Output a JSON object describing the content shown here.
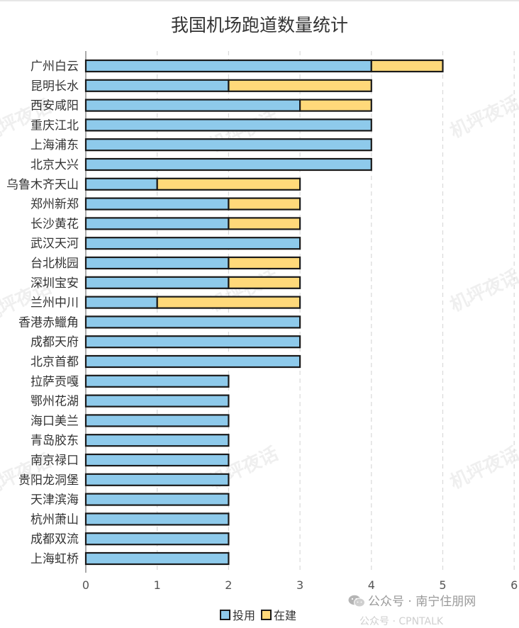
{
  "chart_data": {
    "type": "bar",
    "orientation": "horizontal",
    "stacked": true,
    "title": "我国机场跑道数量统计",
    "categories": [
      "广州白云",
      "昆明长水",
      "西安咸阳",
      "重庆江北",
      "上海浦东",
      "北京大兴",
      "乌鲁木齐天山",
      "郑州新郑",
      "长沙黄花",
      "武汉天河",
      "台北桃园",
      "深圳宝安",
      "兰州中川",
      "香港赤鱲角",
      "成都天府",
      "北京首都",
      "拉萨贡嘎",
      "鄂州花湖",
      "海口美兰",
      "青岛胶东",
      "南京禄口",
      "贵阳龙洞堡",
      "天津滨海",
      "杭州萧山",
      "成都双流",
      "上海虹桥"
    ],
    "series": [
      {
        "name": "投用",
        "color": "#8ecaeb",
        "values": [
          4,
          2,
          3,
          4,
          4,
          4,
          1,
          2,
          2,
          3,
          2,
          2,
          1,
          3,
          3,
          3,
          2,
          2,
          2,
          2,
          2,
          2,
          2,
          2,
          2,
          2
        ]
      },
      {
        "name": "在建",
        "color": "#ffd97a",
        "values": [
          1,
          2,
          1,
          0,
          0,
          0,
          2,
          1,
          1,
          0,
          1,
          1,
          2,
          0,
          0,
          0,
          0,
          0,
          0,
          0,
          0,
          0,
          0,
          0,
          0,
          0
        ]
      }
    ],
    "xlim": [
      0,
      6
    ],
    "xticks": [
      "0",
      "1",
      "2",
      "3",
      "4",
      "5",
      "6"
    ],
    "grid": "vertical dashed",
    "legend_position": "bottom-center"
  },
  "watermark_text": "机坪夜话",
  "footer": {
    "account_text": "公众号 · 南宁住朋网",
    "account_icon": "wechat-icon",
    "cut_text": "公众号 · CPNTALK"
  }
}
